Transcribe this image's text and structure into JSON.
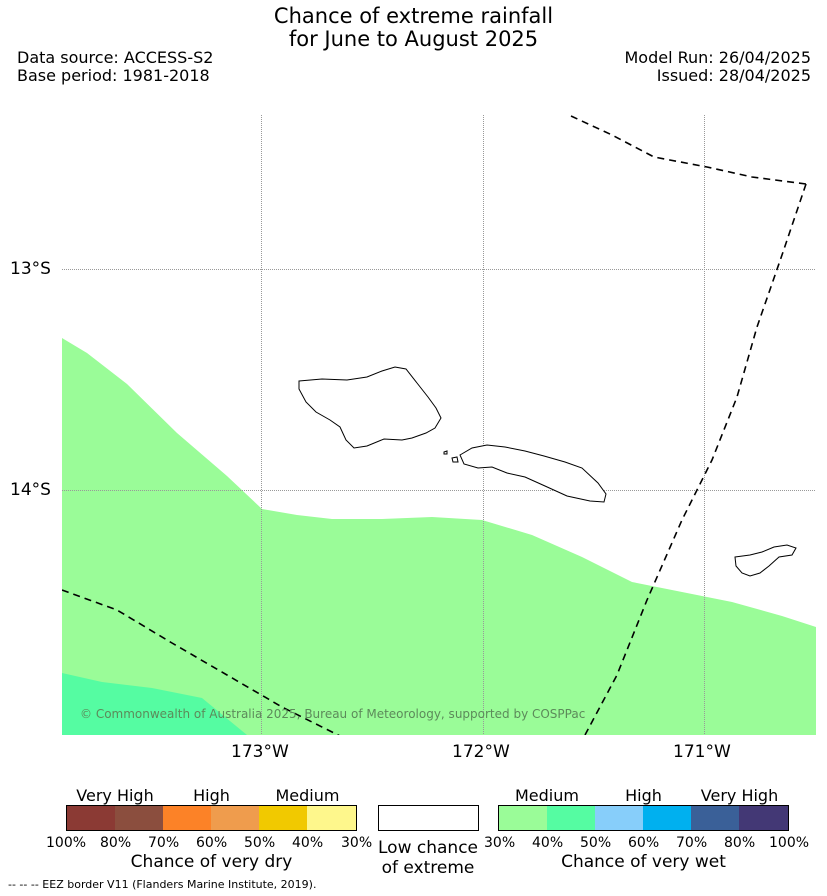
{
  "title": {
    "line1": "Chance of extreme rainfall",
    "line2": "for June to August 2025"
  },
  "meta": {
    "data_source": "Data source: ACCESS-S2",
    "base_period": "Base period: 1981-2018",
    "model_run": "Model Run: 26/04/2025",
    "issued": "Issued: 28/04/2025"
  },
  "axes": {
    "lat_labels": [
      "13°S",
      "14°S"
    ],
    "lon_labels": [
      "173°W",
      "172°W",
      "171°W"
    ]
  },
  "map": {
    "copyright": "© Commonwealth of Australia 2025, Bureau of Meteorology, supported by COSPPac",
    "colors": {
      "medium_wet": "#9afc98",
      "high_wet_40_50": "#55fca2",
      "eez_border": "#000000",
      "coastline": "#000000",
      "gridline": "#999999"
    }
  },
  "legend": {
    "dry": {
      "labels": [
        "Very High",
        "High",
        "Medium"
      ],
      "percents": [
        "100%",
        "80%",
        "70%",
        "60%",
        "50%",
        "40%",
        "30%"
      ],
      "colors": [
        "#8b3a34",
        "#8b4e3e",
        "#fc8227",
        "#ef9c4d",
        "#f1c900",
        "#fef78c"
      ],
      "caption": "Chance of very dry"
    },
    "low": {
      "caption_line1": "Low chance",
      "caption_line2": "of extreme"
    },
    "wet": {
      "labels": [
        "Medium",
        "High",
        "Very High"
      ],
      "percents": [
        "30%",
        "40%",
        "50%",
        "60%",
        "70%",
        "80%",
        "100%"
      ],
      "colors": [
        "#9afc98",
        "#55fca2",
        "#87cefa",
        "#00b0ef",
        "#3a6098",
        "#433875"
      ],
      "caption": "Chance of very wet"
    }
  },
  "footnote": "--  --  -- EEZ border V11 (Flanders Marine Institute, 2019)."
}
